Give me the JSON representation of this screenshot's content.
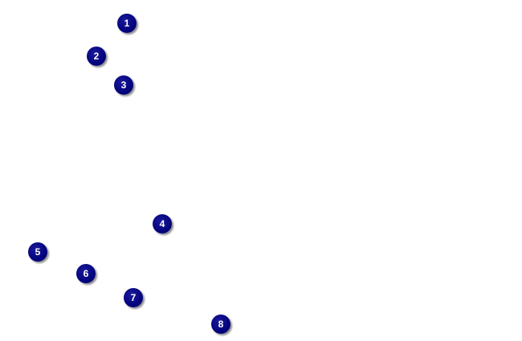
{
  "markers": [
    {
      "label": "1"
    },
    {
      "label": "2"
    },
    {
      "label": "3"
    },
    {
      "label": "4"
    },
    {
      "label": "5"
    },
    {
      "label": "6"
    },
    {
      "label": "7"
    },
    {
      "label": "8"
    }
  ],
  "colors": {
    "marker": "#000080",
    "marker_text": "#ffffff"
  }
}
